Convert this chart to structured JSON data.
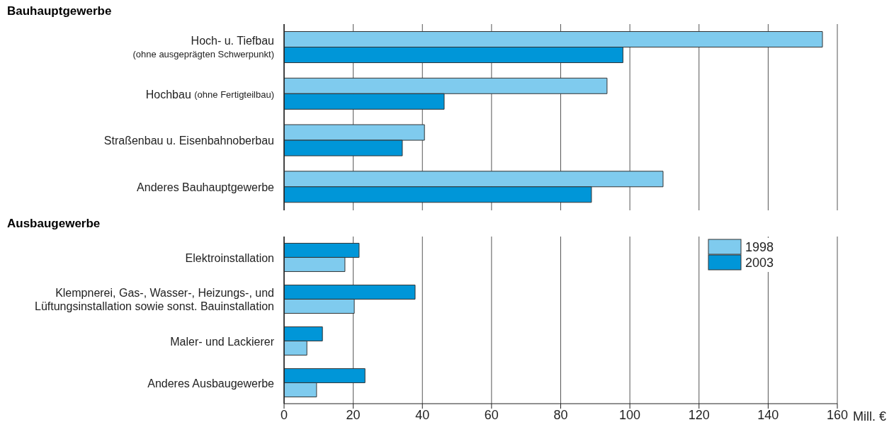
{
  "chart_data": [
    {
      "type": "bar",
      "orientation": "horizontal",
      "title": "Bauhauptgewerbe",
      "categories": [
        "Hoch- u. Tiefbau\n(ohne ausgeprägten Schwerpunkt)",
        "Hochbau (ohne Fertigteilbau)",
        "Straßenbau u. Eisenbahnoberbau",
        "Anderes Bauhauptgewerbe"
      ],
      "series": [
        {
          "color": "#7fcbee",
          "values": [
            155.7,
            93.4,
            40.6,
            109.6
          ]
        },
        {
          "color": "#0096d8",
          "values": [
            98,
            46.3,
            34.2,
            88.9
          ]
        }
      ],
      "xlim": [
        0,
        160
      ],
      "xticks": [
        0,
        20,
        40,
        60,
        80,
        100,
        120,
        140,
        160
      ],
      "grid": "x",
      "legend": false,
      "tick_labels": "y"
    },
    {
      "type": "bar",
      "orientation": "horizontal",
      "title": "Ausbaugewerbe",
      "xlabel": "Mill. €",
      "categories": [
        "Elektroinstallation",
        "Klempnerei, Gas-, Wasser-, Heizungs-, und\nLüftungsinstallation sowie sonst. Bauinstallation",
        "Maler- und  Lackierer",
        "Anderes Ausbaugewerbe"
      ],
      "series": [
        {
          "name": "2003",
          "color": "#0096d8",
          "values": [
            21.7,
            37.9,
            11.1,
            23.4
          ]
        },
        {
          "name": "1998",
          "color": "#7fcbee",
          "values": [
            17.6,
            20.3,
            6.6,
            9.4
          ]
        }
      ],
      "xlim": [
        0,
        160
      ],
      "xticks": [
        0,
        20,
        40,
        60,
        80,
        100,
        120,
        140,
        160
      ],
      "grid": "x",
      "legend": "top right"
    }
  ]
}
